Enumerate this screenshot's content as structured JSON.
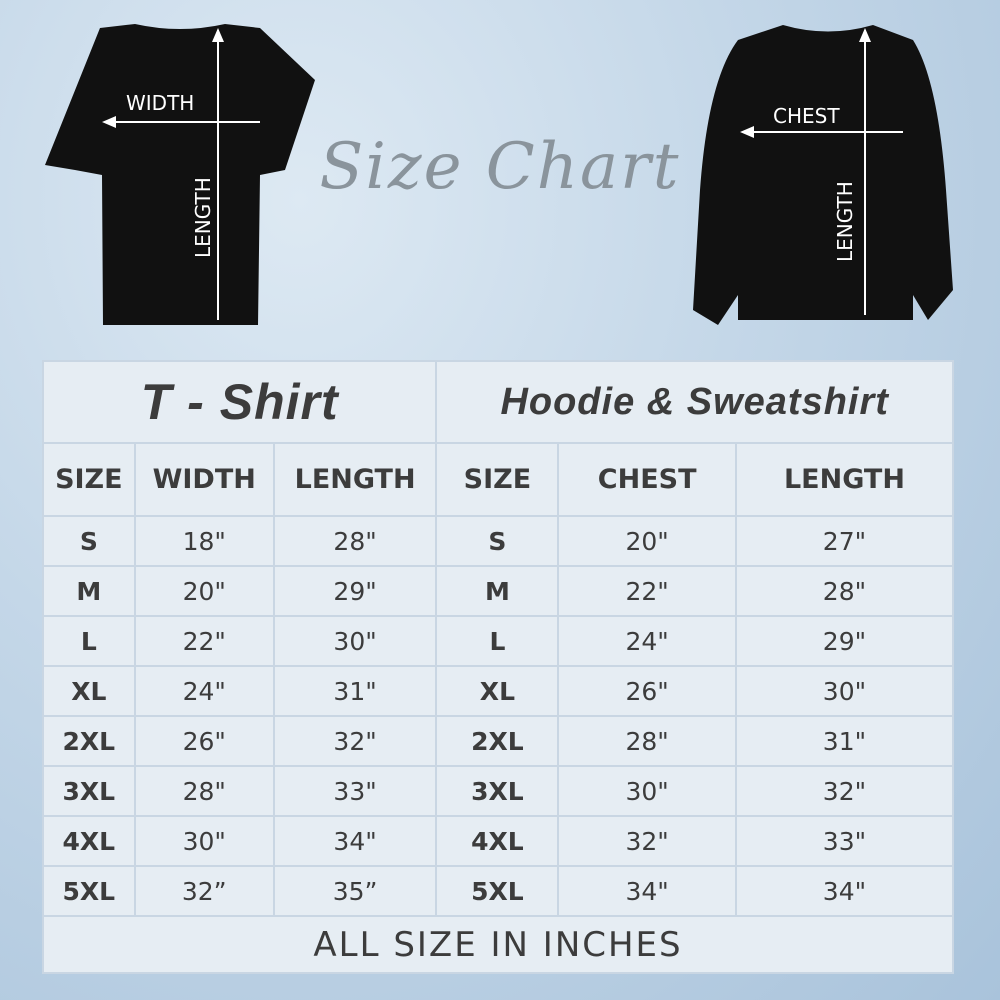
{
  "title": "Size Chart",
  "tshirt_diagram": {
    "width_label": "WIDTH",
    "length_label": "LENGTH"
  },
  "sweatshirt_diagram": {
    "chest_label": "CHEST",
    "length_label": "LENGTH"
  },
  "tshirt": {
    "title": "T - Shirt",
    "headers": [
      "SIZE",
      "WIDTH",
      "LENGTH"
    ],
    "rows": [
      [
        "S",
        "18\"",
        "28\""
      ],
      [
        "M",
        "20\"",
        "29\""
      ],
      [
        "L",
        "22\"",
        "30\""
      ],
      [
        "XL",
        "24\"",
        "31\""
      ],
      [
        "2XL",
        "26\"",
        "32\""
      ],
      [
        "3XL",
        "28\"",
        "33\""
      ],
      [
        "4XL",
        "30\"",
        "34\""
      ],
      [
        "5XL",
        "32”",
        "35”"
      ]
    ]
  },
  "hoodie": {
    "title": "Hoodie & Sweatshirt",
    "headers": [
      "SIZE",
      "CHEST",
      "LENGTH"
    ],
    "rows": [
      [
        "S",
        "20\"",
        "27\""
      ],
      [
        "M",
        "22\"",
        "28\""
      ],
      [
        "L",
        "24\"",
        "29\""
      ],
      [
        "XL",
        "26\"",
        "30\""
      ],
      [
        "2XL",
        "28\"",
        "31\""
      ],
      [
        "3XL",
        "30\"",
        "32\""
      ],
      [
        "4XL",
        "32\"",
        "33\""
      ],
      [
        "5XL",
        "34\"",
        "34\""
      ]
    ]
  },
  "footer": "ALL SIZE IN INCHES"
}
